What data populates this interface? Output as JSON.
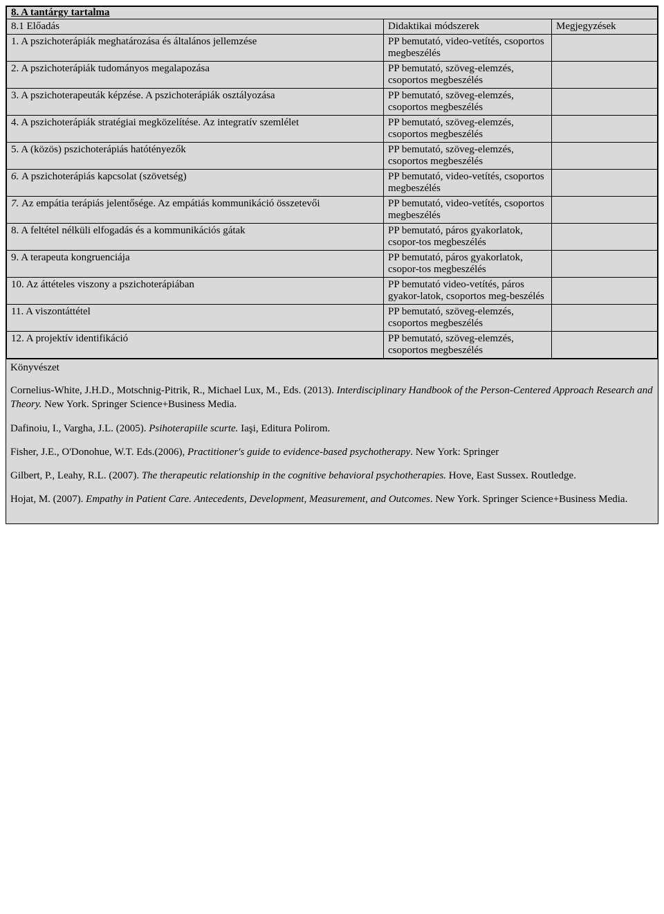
{
  "section_title": "8. A tantárgy tartalma",
  "header": {
    "col1": "8.1 Előadás",
    "col2": "Didaktikai módszerek",
    "col3": "Megjegyzések"
  },
  "rows": [
    {
      "num": "1.",
      "title": "A pszichoterápiák meghatározása és általános jellemzése",
      "method": "PP bemutató, video-vetítés, csoportos megbeszélés"
    },
    {
      "num": "2.",
      "title": "A pszichoterápiák tudományos megalapozása",
      "method": "PP bemutató, szöveg-elemzés, csoportos megbeszélés"
    },
    {
      "num": "3.",
      "title": "A pszichoterapeuták képzése. A pszichoterápiák osztályozása",
      "method": "PP bemutató, szöveg-elemzés, csoportos megbeszélés"
    },
    {
      "num": "4.",
      "title": "A pszichoterápiák stratégiai megközelítése. Az integratív szemlélet",
      "method": "PP bemutató, szöveg-elemzés, csoportos megbeszélés"
    },
    {
      "num": "5.",
      "title": "A (közös) pszichoterápiás hatótényezők",
      "method": "PP bemutató, szöveg-elemzés, csoportos megbeszélés"
    },
    {
      "num": "6.",
      "title": "A pszichoterápiás kapcsolat (szövetség)",
      "method": "PP bemutató, video-vetítés, csoportos megbeszélés",
      "italic_num": true
    },
    {
      "num": "7.",
      "title": "Az empátia terápiás jelentősége. Az empátiás kommunikáció összetevői",
      "method": "PP bemutató, video-vetítés, csoportos megbeszélés",
      "italic_num": true
    },
    {
      "num": "8.",
      "title": "A feltétel nélküli elfogadás és a kommunikációs gátak",
      "method": "PP bemutató, páros gyakorlatok, csopor-tos megbeszélés"
    },
    {
      "num": "9.",
      "title": "A terapeuta kongruenciája",
      "method": "PP bemutató, páros gyakorlatok, csopor-tos megbeszélés"
    },
    {
      "num": "10.",
      "title": "Az áttételes viszony a pszichoterápiában",
      "method": "PP bemutató video-vetítés, páros gyakor-latok, csoportos meg-beszélés"
    },
    {
      "num": "11.",
      "title": "A viszontáttétel",
      "method": "PP bemutató, szöveg-elemzés, csoportos megbeszélés"
    },
    {
      "num": "12.",
      "title": "A projektív identifikáció",
      "method": "PP bemutató, szöveg-elemzés, csoportos megbeszélés"
    }
  ],
  "bib_label": "Könyvészet",
  "bibliography": [
    {
      "pre": "Cornelius-White, J.H.D., Motschnig-Pitrik, R., Michael Lux, M., Eds. (2013). ",
      "ital": "Interdisciplinary Handbook of the Person-Centered Approach Research and Theory.",
      "post": " New York. Springer Science+Business Media."
    },
    {
      "pre": "Dafinoiu, I., Vargha, J.L. (2005). ",
      "ital": "Psihoterapiile scurte.",
      "post": " Iaşi, Editura Polirom."
    },
    {
      "pre": "Fisher, J.E., O'Donohue, W.T. Eds.(2006), ",
      "ital": "Practitioner's guide to evidence-based psychotherapy",
      "post": ". New York: Springer"
    },
    {
      "pre": "Gilbert, P., Leahy, R.L. (2007). ",
      "ital": "The therapeutic relationship in the cognitive behavioral psychotherapies.",
      "post": " Hove, East Sussex. Routledge."
    },
    {
      "pre": "Hojat, M. (2007). ",
      "ital": "Empathy in Patient Care. Antecedents, Development, Measurement, and Outcomes",
      "post": ". New York. Springer Science+Business Media."
    }
  ],
  "colors": {
    "cell_bg": "#d9d9d9",
    "border": "#000000",
    "text": "#000000",
    "page_bg": "#ffffff"
  }
}
